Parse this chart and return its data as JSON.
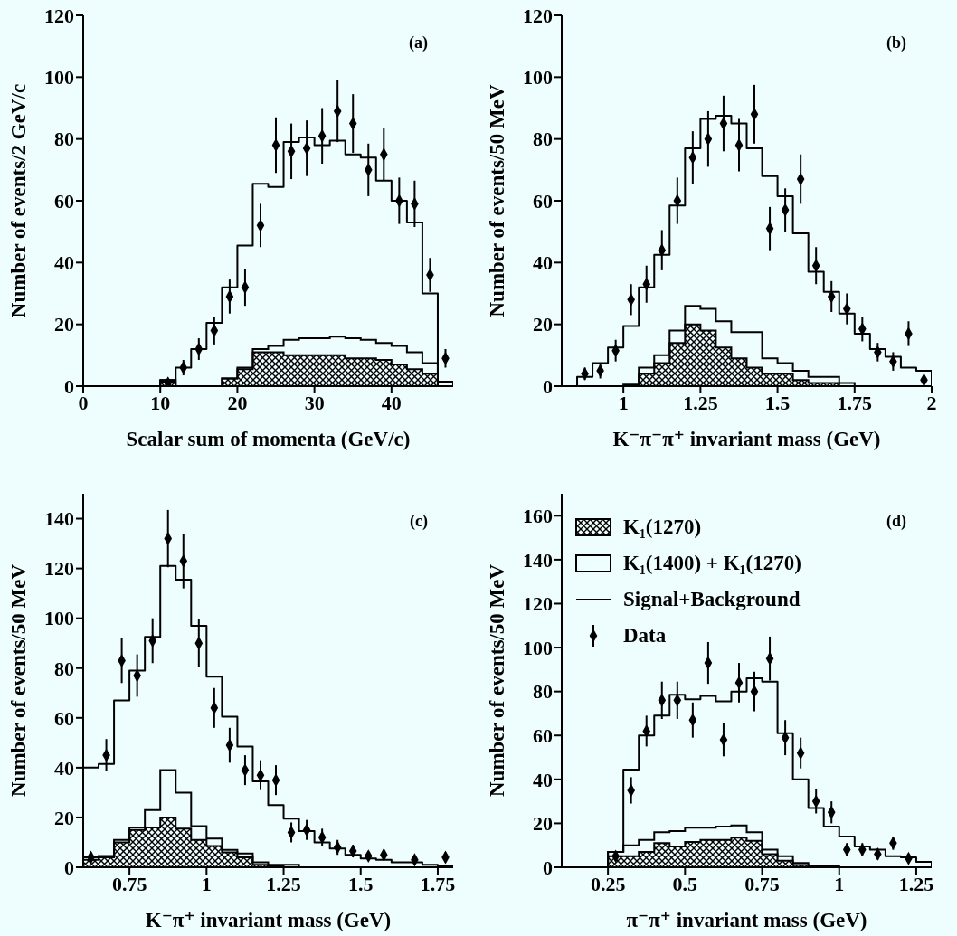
{
  "chart_data": [
    {
      "type": "histogram",
      "xlabel": "Scalar sum of momenta (GeV/c)",
      "ylabel": "Number of events/2 GeV/c",
      "annotations": [
        "(a)"
      ],
      "xlim": [
        0,
        48
      ],
      "xticks": [
        0,
        10,
        20,
        30,
        40
      ],
      "ylim": [
        0,
        120
      ],
      "yticks": [
        0,
        20,
        40,
        60,
        80,
        100,
        120
      ],
      "marker": "diamond",
      "bins": [
        10,
        12,
        14,
        16,
        18,
        20,
        22,
        24,
        26,
        28,
        30,
        32,
        34,
        36,
        38,
        40,
        42,
        44,
        46,
        48
      ],
      "series": [
        {
          "type": "histogram",
          "color": "#000000",
          "values": [
            1.5,
            0,
            0,
            0,
            2.5,
            5.5,
            11,
            11,
            10,
            10,
            10,
            10,
            9,
            9,
            8.5,
            7,
            5.5,
            4,
            0
          ]
        },
        {
          "type": "histogram",
          "color": "#000000",
          "values": [
            2,
            0,
            0,
            0,
            2.5,
            6,
            12,
            13,
            15,
            15.5,
            15.5,
            16,
            15.5,
            15,
            14,
            13,
            11,
            7.5,
            0
          ]
        },
        {
          "type": "histogram",
          "color": "#000000",
          "values": [
            2,
            6,
            12,
            20.5,
            32,
            45.5,
            65.5,
            64.5,
            79,
            80.5,
            78,
            79.5,
            75,
            74,
            66.5,
            60,
            53,
            30,
            1.5
          ]
        },
        {
          "type": "scatter",
          "color": "#000000",
          "x": [
            11,
            13,
            15,
            17,
            19,
            21,
            23,
            25,
            27,
            29,
            31,
            33,
            35,
            37,
            39,
            41,
            43,
            45,
            47
          ],
          "values": [
            1,
            6,
            12,
            18,
            29,
            32,
            52,
            78,
            76,
            77,
            81,
            89,
            85,
            70,
            75,
            60,
            59,
            36,
            9
          ],
          "errors": [
            null,
            2.5,
            3.5,
            4.5,
            5.5,
            6,
            7,
            9,
            9,
            9,
            9,
            10,
            9.5,
            8.5,
            8.5,
            7.5,
            7.5,
            5.5,
            3
          ]
        }
      ]
    },
    {
      "type": "histogram",
      "xlabel": "K⁻π⁻π⁺ invariant mass (GeV)",
      "ylabel": "Number of events/50 MeV",
      "annotations": [
        "(b)"
      ],
      "xlim": [
        0.8,
        2
      ],
      "xticks": [
        1,
        1.25,
        1.5,
        1.75,
        2
      ],
      "ylim": [
        0,
        120
      ],
      "yticks": [
        0,
        20,
        40,
        60,
        80,
        100,
        120
      ],
      "marker": "diamond",
      "bins": [
        0.85,
        0.9,
        0.95,
        1,
        1.05,
        1.1,
        1.15,
        1.2,
        1.25,
        1.3,
        1.35,
        1.4,
        1.45,
        1.5,
        1.55,
        1.6,
        1.65,
        1.7,
        1.75,
        1.8,
        1.85,
        1.9,
        1.95,
        2
      ],
      "series": [
        {
          "type": "histogram",
          "color": "#000000",
          "values": [
            0,
            0,
            0,
            0,
            4,
            7.5,
            14,
            20,
            18,
            12.5,
            9,
            6,
            4,
            4,
            2,
            1,
            1,
            0,
            0,
            0,
            0,
            0,
            0
          ]
        },
        {
          "type": "histogram",
          "color": "#000000",
          "values": [
            0,
            0,
            0,
            0.5,
            6,
            10,
            18,
            26,
            25,
            21,
            17.5,
            17.5,
            9,
            7.5,
            5,
            3,
            3,
            1,
            0,
            0,
            0,
            0,
            0
          ]
        },
        {
          "type": "histogram",
          "color": "#000000",
          "values": [
            3,
            7.5,
            12.5,
            19.5,
            32,
            42.5,
            58.5,
            77,
            86.5,
            87.5,
            85,
            77,
            68,
            61.5,
            49.5,
            37,
            30.5,
            23.5,
            17,
            12,
            9.5,
            6,
            5
          ]
        },
        {
          "type": "scatter",
          "color": "#000000",
          "x": [
            0.875,
            0.925,
            0.975,
            1.025,
            1.075,
            1.125,
            1.175,
            1.225,
            1.275,
            1.325,
            1.375,
            1.425,
            1.475,
            1.525,
            1.575,
            1.625,
            1.675,
            1.725,
            1.775,
            1.825,
            1.875,
            1.925,
            1.975
          ],
          "values": [
            4,
            5,
            11.5,
            28,
            33,
            44,
            60,
            74,
            80,
            85,
            78,
            88,
            51,
            57,
            67,
            39,
            29,
            25,
            18.5,
            11,
            8,
            17,
            2
          ],
          "errors": [
            2,
            2.5,
            3.5,
            5,
            6,
            6.5,
            7.5,
            8.5,
            9,
            9,
            8.5,
            9.5,
            7,
            7,
            8,
            6,
            5,
            5,
            4,
            3,
            3,
            4,
            null
          ]
        }
      ]
    },
    {
      "type": "histogram",
      "xlabel": "K⁻π⁺ invariant mass (GeV)",
      "ylabel": "Number of events/50 MeV",
      "annotations": [
        "(c)"
      ],
      "xlim": [
        0.6,
        1.8
      ],
      "xticks": [
        0.75,
        1,
        1.25,
        1.5,
        1.75
      ],
      "ylim": [
        0,
        150
      ],
      "yticks": [
        0,
        20,
        40,
        60,
        80,
        100,
        120,
        140
      ],
      "marker": "diamond",
      "bins": [
        0.6,
        0.65,
        0.7,
        0.75,
        0.8,
        0.85,
        0.9,
        0.95,
        1,
        1.05,
        1.1,
        1.15,
        1.2,
        1.25,
        1.3,
        1.35,
        1.4,
        1.45,
        1.5,
        1.55,
        1.6,
        1.65,
        1.7,
        1.75,
        1.8
      ],
      "series": [
        {
          "type": "histogram",
          "color": "#000000",
          "values": [
            3,
            4,
            10,
            15,
            16,
            20,
            15.5,
            11,
            8.5,
            6,
            4,
            1,
            0.5,
            0,
            0,
            0,
            0,
            0,
            0,
            0,
            0,
            0,
            0,
            0
          ]
        },
        {
          "type": "histogram",
          "color": "#000000",
          "values": [
            4,
            4.5,
            11,
            16,
            23,
            39,
            30,
            16.5,
            11.5,
            7,
            5.5,
            2,
            1,
            1,
            0,
            0,
            0,
            0,
            0,
            0,
            0,
            0,
            0,
            0
          ]
        },
        {
          "type": "histogram",
          "color": "#000000",
          "values": [
            40,
            41.5,
            67,
            79,
            92.5,
            121,
            115.5,
            97,
            76.5,
            60.5,
            48.5,
            34.5,
            25,
            19.5,
            14.5,
            10,
            7.5,
            5,
            3.5,
            3,
            2,
            2,
            1,
            0.5
          ]
        },
        {
          "type": "scatter",
          "color": "#000000",
          "x": [
            0.625,
            0.675,
            0.725,
            0.775,
            0.825,
            0.875,
            0.925,
            0.975,
            1.025,
            1.075,
            1.125,
            1.175,
            1.225,
            1.275,
            1.325,
            1.375,
            1.425,
            1.475,
            1.525,
            1.575,
            1.675,
            1.775
          ],
          "values": [
            4,
            45,
            83,
            77,
            91,
            132,
            123,
            90,
            64,
            49,
            39,
            37,
            35,
            14,
            15,
            12,
            8,
            6.5,
            4.5,
            5,
            3,
            4
          ],
          "errors": [
            2,
            6.5,
            9,
            8.5,
            9,
            11.5,
            11,
            9.5,
            8,
            7,
            6,
            6,
            6,
            4,
            4,
            3.5,
            3,
            2.5,
            2,
            2,
            1.5,
            2
          ]
        }
      ]
    },
    {
      "type": "histogram",
      "xlabel": "π⁻π⁺ invariant mass (GeV)",
      "ylabel": "Number of events/50 MeV",
      "annotations": [
        "(d)"
      ],
      "xlim": [
        0.1,
        1.3
      ],
      "xticks": [
        0.25,
        0.5,
        0.75,
        1,
        1.25
      ],
      "ylim": [
        0,
        170
      ],
      "yticks": [
        0,
        20,
        40,
        60,
        80,
        100,
        120,
        140,
        160
      ],
      "marker": "diamond",
      "legend": "top left",
      "bins": [
        0.25,
        0.3,
        0.35,
        0.4,
        0.45,
        0.5,
        0.55,
        0.6,
        0.65,
        0.7,
        0.75,
        0.8,
        0.85,
        0.9,
        0.95,
        1,
        1.05,
        1.1,
        1.15,
        1.2,
        1.25,
        1.3
      ],
      "series": [
        {
          "type": "histogram",
          "name": "K₁(1270)",
          "color": "#000000",
          "values": [
            5,
            5,
            7,
            11,
            9.5,
            11.5,
            12.5,
            12.5,
            13.5,
            12,
            6,
            3,
            1,
            0,
            0,
            0,
            0,
            0,
            0,
            0,
            0
          ]
        },
        {
          "type": "histogram",
          "name": "K₁(1400) + K₁(1270)",
          "color": "#000000",
          "values": [
            7,
            10,
            12.5,
            16,
            16.5,
            18,
            18,
            18.5,
            19,
            16,
            8,
            5,
            2,
            0.5,
            0.5,
            0,
            0,
            0,
            0,
            0,
            0
          ]
        },
        {
          "type": "histogram",
          "name": "Signal+Background",
          "color": "#000000",
          "values": [
            7,
            44.5,
            60,
            69,
            78.5,
            76.5,
            78,
            75.5,
            80,
            86,
            84.5,
            61,
            40,
            27,
            18.5,
            14,
            9.5,
            8,
            5,
            4.5,
            2.5
          ]
        },
        {
          "type": "scatter",
          "name": "Data",
          "color": "#000000",
          "x": [
            0.275,
            0.325,
            0.375,
            0.425,
            0.475,
            0.525,
            0.575,
            0.625,
            0.675,
            0.725,
            0.775,
            0.825,
            0.875,
            0.925,
            0.975,
            1.025,
            1.075,
            1.125,
            1.175,
            1.225
          ],
          "values": [
            5,
            35,
            62,
            76,
            76,
            67,
            93,
            58,
            84,
            80,
            95,
            59,
            52,
            30,
            25,
            8,
            8,
            6,
            11,
            4
          ],
          "errors": [
            2,
            6,
            7,
            8.5,
            8.5,
            8,
            9.5,
            7.5,
            9,
            9,
            10,
            8,
            7,
            5.5,
            5,
            3,
            3,
            2.5,
            3,
            2
          ]
        }
      ]
    }
  ]
}
